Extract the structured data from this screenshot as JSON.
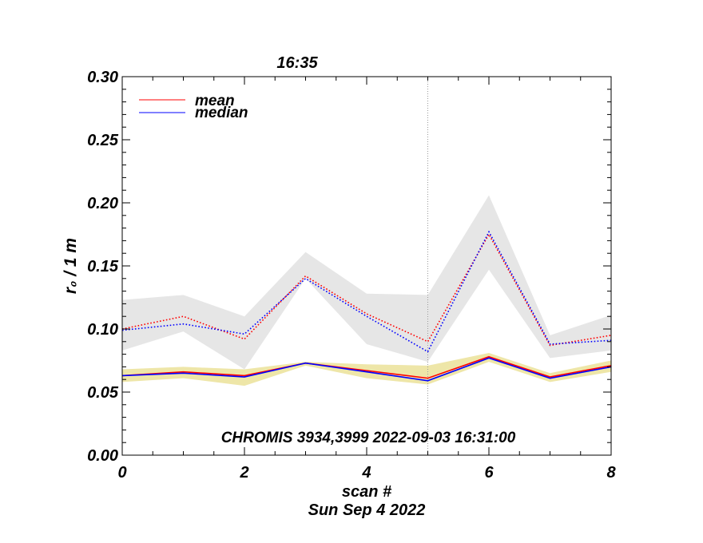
{
  "chart_data": {
    "type": "line",
    "top_label": "16:35",
    "annotation": "CHROMIS 3934,3999 2022-09-03 16:31:00",
    "xlabel": "scan #",
    "date_label": "Sun Sep  4 2022",
    "ylabel": "r₀ / 1 m",
    "xlim": [
      0,
      8
    ],
    "ylim": [
      0,
      0.3
    ],
    "x_ticks": [
      "0",
      "2",
      "4",
      "6",
      "8"
    ],
    "y_ticks": [
      "0.00",
      "0.05",
      "0.10",
      "0.15",
      "0.20",
      "0.25",
      "0.30"
    ],
    "marker_x": 5,
    "legend": {
      "position": "top-left",
      "entries": [
        "mean",
        "median"
      ]
    },
    "x": [
      0,
      1,
      2,
      3,
      4,
      5,
      6,
      7,
      8
    ],
    "series": [
      {
        "name": "mean",
        "style": "dotted",
        "color": "#ff0000",
        "group": "high",
        "values": [
          0.1,
          0.11,
          0.092,
          0.142,
          0.112,
          0.09,
          0.175,
          0.087,
          0.095
        ]
      },
      {
        "name": "median",
        "style": "dotted",
        "color": "#0000ff",
        "group": "high",
        "values": [
          0.099,
          0.104,
          0.096,
          0.14,
          0.11,
          0.082,
          0.177,
          0.088,
          0.091
        ]
      },
      {
        "name": "mean",
        "style": "solid",
        "color": "#ff0000",
        "group": "low",
        "values": [
          0.063,
          0.066,
          0.063,
          0.073,
          0.067,
          0.061,
          0.078,
          0.062,
          0.071
        ]
      },
      {
        "name": "median",
        "style": "solid",
        "color": "#0000ff",
        "group": "low",
        "values": [
          0.063,
          0.065,
          0.062,
          0.073,
          0.066,
          0.059,
          0.077,
          0.061,
          0.07
        ]
      }
    ],
    "bands": [
      {
        "name": "high-range",
        "color": "#e6e6e6",
        "upper": [
          0.123,
          0.127,
          0.11,
          0.161,
          0.128,
          0.127,
          0.206,
          0.095,
          0.111
        ],
        "lower": [
          0.083,
          0.098,
          0.068,
          0.14,
          0.088,
          0.074,
          0.147,
          0.077,
          0.083
        ]
      },
      {
        "name": "low-range",
        "color": "#eee6a8",
        "upper": [
          0.068,
          0.07,
          0.068,
          0.074,
          0.072,
          0.071,
          0.081,
          0.065,
          0.075
        ],
        "lower": [
          0.058,
          0.061,
          0.055,
          0.071,
          0.061,
          0.056,
          0.074,
          0.058,
          0.066
        ]
      }
    ]
  }
}
